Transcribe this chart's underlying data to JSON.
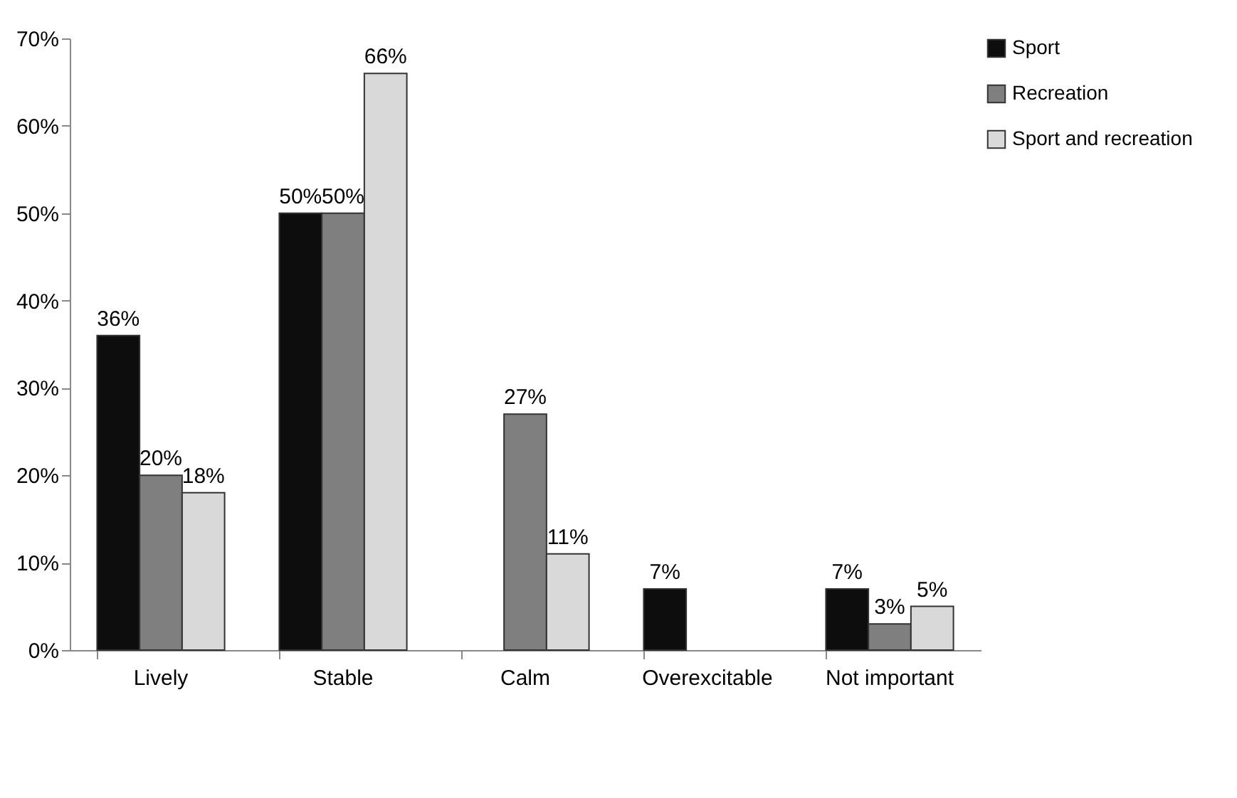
{
  "chart_data": {
    "type": "bar",
    "categories": [
      "Lively",
      "Stable",
      "Calm",
      "Overexcitable",
      "Not important"
    ],
    "series": [
      {
        "name": "Sport",
        "color": "#0d0d0d",
        "values": [
          36,
          50,
          0,
          7,
          7
        ],
        "value_labels": [
          "36%",
          "50%",
          null,
          "7%",
          "7%"
        ]
      },
      {
        "name": "Recreation",
        "color": "#7f7f7f",
        "values": [
          20,
          50,
          27,
          0,
          3
        ],
        "value_labels": [
          "20%",
          "50%",
          "27%",
          null,
          "3%"
        ]
      },
      {
        "name": "Sport and recreation",
        "color": "#d9d9d9",
        "values": [
          18,
          66,
          11,
          0,
          5
        ],
        "value_labels": [
          "18%",
          "66%",
          "11%",
          null,
          "5%"
        ]
      }
    ],
    "ylim": [
      0,
      70
    ],
    "yticks": [
      {
        "value": 0,
        "label": "0%"
      },
      {
        "value": 10,
        "label": "10%"
      },
      {
        "value": 20,
        "label": "20%"
      },
      {
        "value": 30,
        "label": "30%"
      },
      {
        "value": 40,
        "label": "40%"
      },
      {
        "value": 50,
        "label": "50%"
      },
      {
        "value": 60,
        "label": "60%"
      },
      {
        "value": 70,
        "label": "70%"
      }
    ],
    "grid": false,
    "legend": "top right"
  }
}
